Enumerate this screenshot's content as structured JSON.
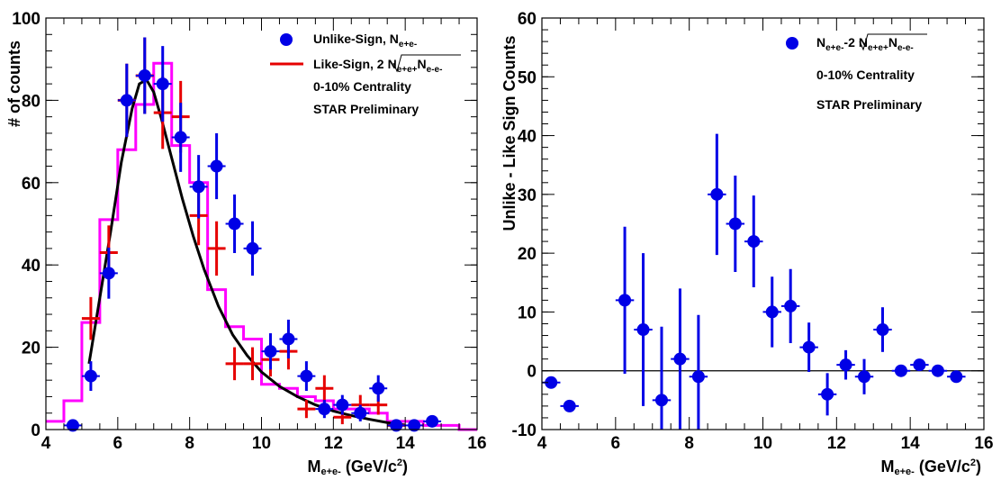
{
  "chart_data": [
    {
      "type": "scatter",
      "xlim": [
        4,
        16
      ],
      "ylim": [
        0,
        100
      ],
      "x_ticks": [
        "4",
        "6",
        "8",
        "10",
        "12",
        "14",
        "16"
      ],
      "y_ticks": [
        "0",
        "20",
        "40",
        "60",
        "80",
        "100"
      ],
      "xlabel": "M",
      "xlabel_sub": "e+e-",
      "xlabel_unit": " (GeV/c",
      "xlabel_sup": "2",
      "xlabel_close": ")",
      "ylabel": "# of counts",
      "legend": {
        "position": "top-right",
        "unlike_label": "Unlike-Sign, N",
        "unlike_sub": "e+e-",
        "like_label": "Like-Sign, 2",
        "like_sqrt": "N",
        "like_sub1": "e+e+",
        "like_mid": "N",
        "like_sub2": "e-e-",
        "note1": "0-10% Centrality",
        "note2": "STAR Preliminary"
      },
      "series": [
        {
          "name": "Unlike-Sign, N e+e-",
          "color": "#0000e6",
          "marker": "circle",
          "x": [
            4.75,
            5.25,
            5.75,
            6.25,
            6.75,
            7.25,
            7.75,
            8.25,
            8.75,
            9.25,
            9.75,
            10.25,
            10.75,
            11.25,
            11.75,
            12.25,
            12.75,
            13.25,
            13.75,
            14.25,
            14.75
          ],
          "y": [
            1,
            13,
            38,
            80,
            86,
            84,
            71,
            59,
            64,
            50,
            44,
            19,
            22,
            13,
            5,
            6,
            4,
            10,
            1,
            1,
            2
          ],
          "err": [
            1,
            3.6,
            6.2,
            8.9,
            9.3,
            9.2,
            8.4,
            7.7,
            8,
            7.1,
            6.6,
            4.4,
            4.7,
            3.6,
            2.2,
            2.4,
            2,
            3.2,
            1,
            1,
            1.4
          ]
        },
        {
          "name": "Like-Sign, 2 sqrt(N e+e+ N e-e-)",
          "color": "#e60000",
          "marker": "cross",
          "x": [
            5.25,
            5.75,
            6.25,
            6.75,
            7.25,
            7.75,
            8.25,
            8.75,
            9.25,
            9.75,
            10.25,
            10.75,
            11.25,
            11.75,
            12.25,
            12.75,
            13.25,
            13.75
          ],
          "y": [
            27,
            43,
            80,
            86,
            77,
            76,
            52,
            44,
            16,
            16,
            17,
            19,
            5,
            10,
            3,
            6,
            6,
            1
          ],
          "err": [
            5.2,
            6.6,
            8.9,
            9.3,
            8.8,
            8.7,
            7.2,
            6.6,
            4,
            4,
            4.1,
            4.4,
            2.2,
            3.2,
            1.7,
            2.4,
            2.4,
            1
          ]
        },
        {
          "name": "",
          "color": "#ff00ff",
          "type": "histogram",
          "bin_width": 0.5,
          "bin_start": 4,
          "values": [
            2,
            7,
            26,
            51,
            68,
            79,
            89,
            69,
            60,
            34,
            25,
            22,
            11,
            10,
            8,
            7,
            5,
            5,
            4,
            2,
            2,
            1,
            1,
            0
          ]
        },
        {
          "name": "",
          "color": "#000000",
          "type": "line",
          "x": [
            5.2,
            5.5,
            5.8,
            6.1,
            6.4,
            6.6,
            6.8,
            7.0,
            7.2,
            7.5,
            7.8,
            8.1,
            8.4,
            8.8,
            9.2,
            9.6,
            10.0,
            10.5,
            11.0,
            11.5,
            12.0,
            12.5,
            13.0,
            13.5,
            14.0
          ],
          "y": [
            16,
            32,
            48,
            65,
            78,
            84,
            85,
            82,
            76,
            66,
            56,
            47,
            39,
            30,
            23,
            18,
            14,
            10.5,
            8,
            6,
            4.5,
            3.4,
            2.5,
            1.7,
            1.1
          ]
        }
      ]
    },
    {
      "type": "scatter",
      "xlim": [
        4,
        16
      ],
      "ylim": [
        -10,
        60
      ],
      "x_ticks": [
        "4",
        "6",
        "8",
        "10",
        "12",
        "14",
        "16"
      ],
      "y_ticks": [
        "-10",
        "0",
        "10",
        "20",
        "30",
        "40",
        "50",
        "60"
      ],
      "xlabel": "M",
      "xlabel_sub": "e+e-",
      "xlabel_unit": " (GeV/c",
      "xlabel_sup": "2",
      "xlabel_close": ")",
      "ylabel": "Unlike - Like Sign Counts",
      "legend": {
        "position": "top-right",
        "label_n": "N",
        "label_sub": "e+e-",
        "label_mid": "-2",
        "label_sqrt": "N",
        "label_sub1": "e+e+",
        "label_n2": "N",
        "label_sub2": "e-e-",
        "note1": "0-10% Centrality",
        "note2": "STAR Preliminary"
      },
      "series": [
        {
          "name": "N e+e- - 2 sqrt(N e+e+ N e-e-)",
          "color": "#0000e6",
          "marker": "circle",
          "x": [
            4.25,
            4.75,
            6.25,
            6.75,
            7.25,
            7.75,
            8.25,
            8.75,
            9.25,
            9.75,
            10.25,
            10.75,
            11.25,
            11.75,
            12.25,
            12.75,
            13.25,
            13.75,
            14.25,
            14.75,
            15.25
          ],
          "y": [
            -2,
            -6,
            12,
            7,
            -5,
            2,
            -1,
            30,
            25,
            22,
            10,
            11,
            4,
            -4,
            1,
            -1,
            7,
            0,
            1,
            0,
            -1
          ],
          "err": [
            0.6,
            0.6,
            12.5,
            13,
            12.5,
            12,
            10.5,
            10.3,
            8.2,
            7.8,
            6,
            6.3,
            4.2,
            3.6,
            2.5,
            3,
            3.8,
            0.6,
            0.6,
            0.6,
            0.6
          ]
        }
      ]
    }
  ]
}
